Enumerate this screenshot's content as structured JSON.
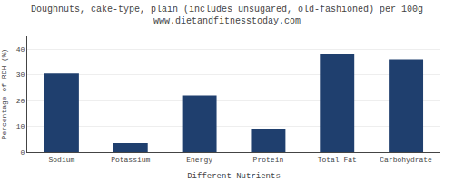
{
  "chart_data": {
    "type": "bar",
    "title": "Doughnuts, cake-type, plain (includes unsugared, old-fashioned) per 100g",
    "subtitle": "www.dietandfitnesstoday.com",
    "xlabel": "Different Nutrients",
    "ylabel": "Percentage of RDH (%)",
    "categories": [
      "Sodium",
      "Potassium",
      "Energy",
      "Protein",
      "Total Fat",
      "Carbohydrate"
    ],
    "values": [
      30.5,
      3.5,
      22,
      9,
      38,
      36
    ],
    "color": "#1F3F6E",
    "ylim": [
      0,
      45
    ],
    "yticks": [
      0,
      10,
      20,
      30,
      40
    ],
    "grid": true
  }
}
